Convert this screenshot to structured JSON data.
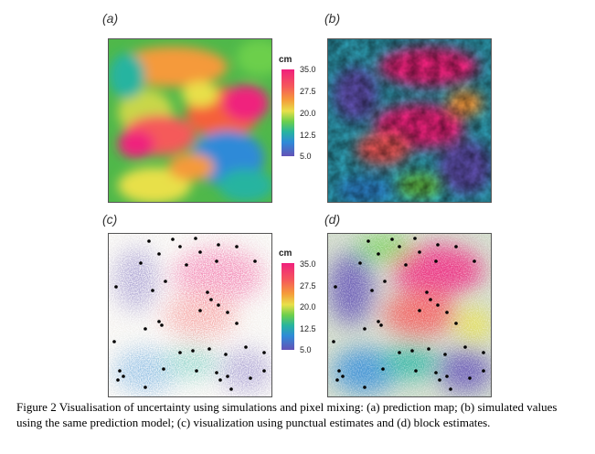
{
  "panels": [
    {
      "label": "(a)"
    },
    {
      "label": "(b)"
    },
    {
      "label": "(c)"
    },
    {
      "label": "(d)"
    }
  ],
  "colorbar": {
    "unit": "cm",
    "ticks": [
      "35.0",
      "27.5",
      "20.0",
      "12.5",
      "5.0"
    ]
  },
  "colors": {
    "high": "#f0207d",
    "mid_high": "#f59a3a",
    "mid": "#6ccf4c",
    "mid_low": "#2f8ad8",
    "low": "#6452b6",
    "point": "#000000"
  },
  "caption": "Figure 2 Visualisation of uncertainty using simulations and pixel mixing: (a) prediction map; (b) simulated values using the same prediction model; (c) visualization using punctual estimates and (d) block estimates."
}
